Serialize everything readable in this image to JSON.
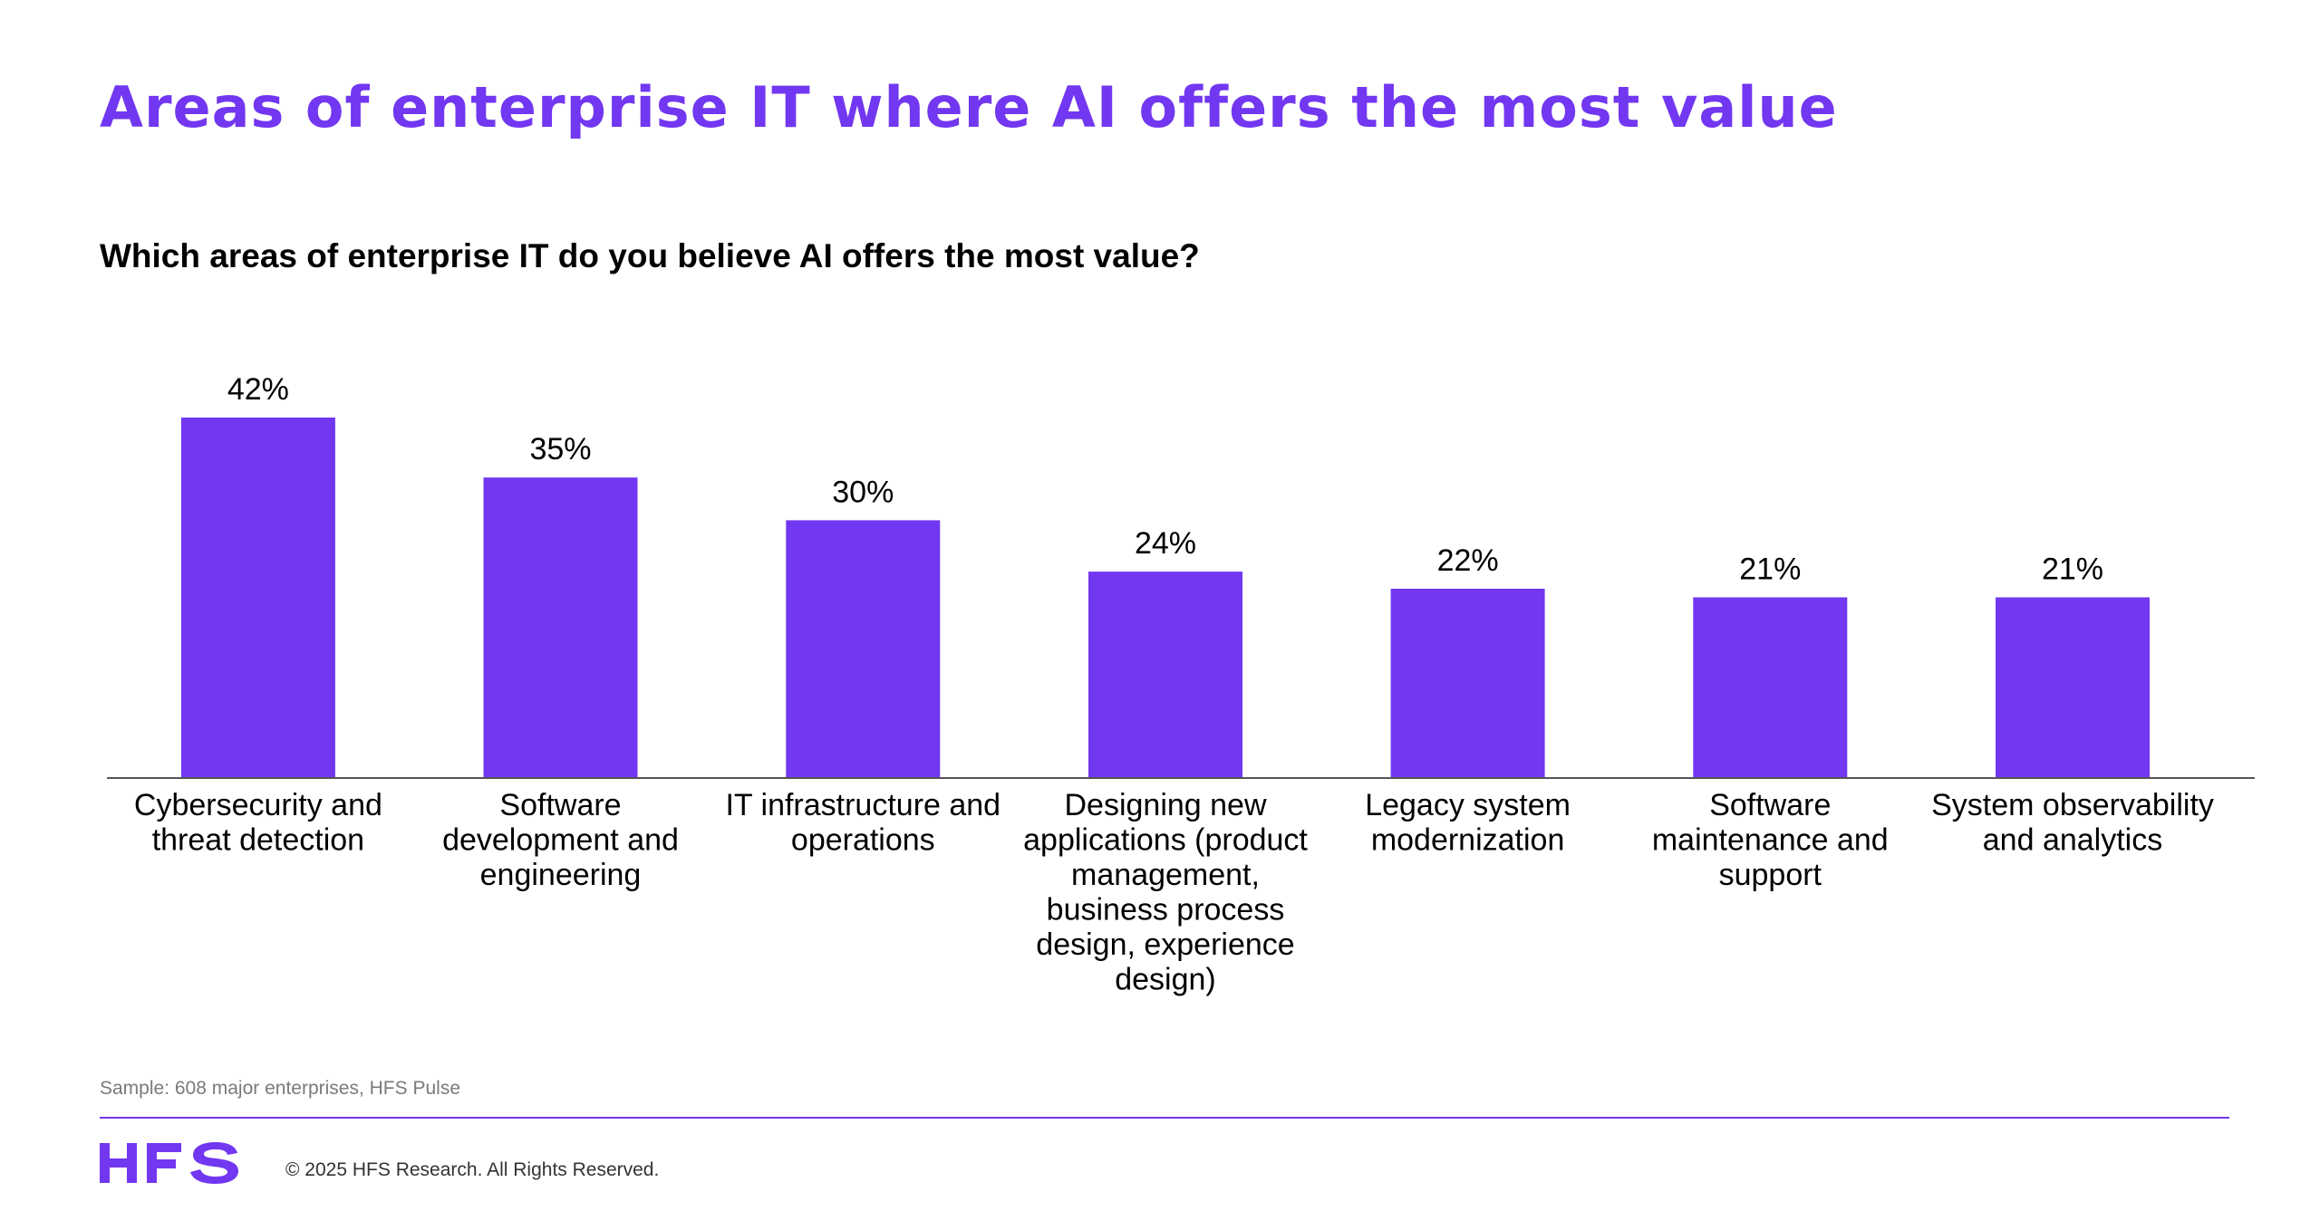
{
  "header": {
    "title": "Areas of enterprise IT where AI offers the most value",
    "question": "Which areas of enterprise IT do you believe AI offers the most value?"
  },
  "footer": {
    "sample": "Sample: 608 major enterprises, HFS Pulse",
    "logo_text": "HFS",
    "copyright": "© 2025 HFS Research. All Rights Reserved."
  },
  "colors": {
    "accent": "#7237F0",
    "bar": "#7237F0",
    "axis": "#555555"
  },
  "chart_data": {
    "type": "bar",
    "categories": [
      "Cybersecurity and threat detection",
      "Software development and engineering",
      "IT infrastructure and operations",
      "Designing new applications (product management, business process design, experience design)",
      "Legacy system modernization",
      "Software maintenance and support",
      "System observability and analytics"
    ],
    "category_lines": [
      [
        "Cybersecurity and",
        "threat detection"
      ],
      [
        "Software",
        "development and",
        "engineering"
      ],
      [
        "IT infrastructure and",
        "operations"
      ],
      [
        "Designing new",
        "applications (product",
        "management,",
        "business process",
        "design, experience",
        "design)"
      ],
      [
        "Legacy system",
        "modernization"
      ],
      [
        "Software",
        "maintenance and",
        "support"
      ],
      [
        "System observability",
        "and analytics"
      ]
    ],
    "values": [
      42,
      35,
      30,
      24,
      22,
      21,
      21
    ],
    "value_labels": [
      "42%",
      "35%",
      "30%",
      "24%",
      "22%",
      "21%",
      "21%"
    ],
    "unit": "%",
    "ylim": [
      0,
      42
    ],
    "grid": false,
    "legend": "none"
  }
}
